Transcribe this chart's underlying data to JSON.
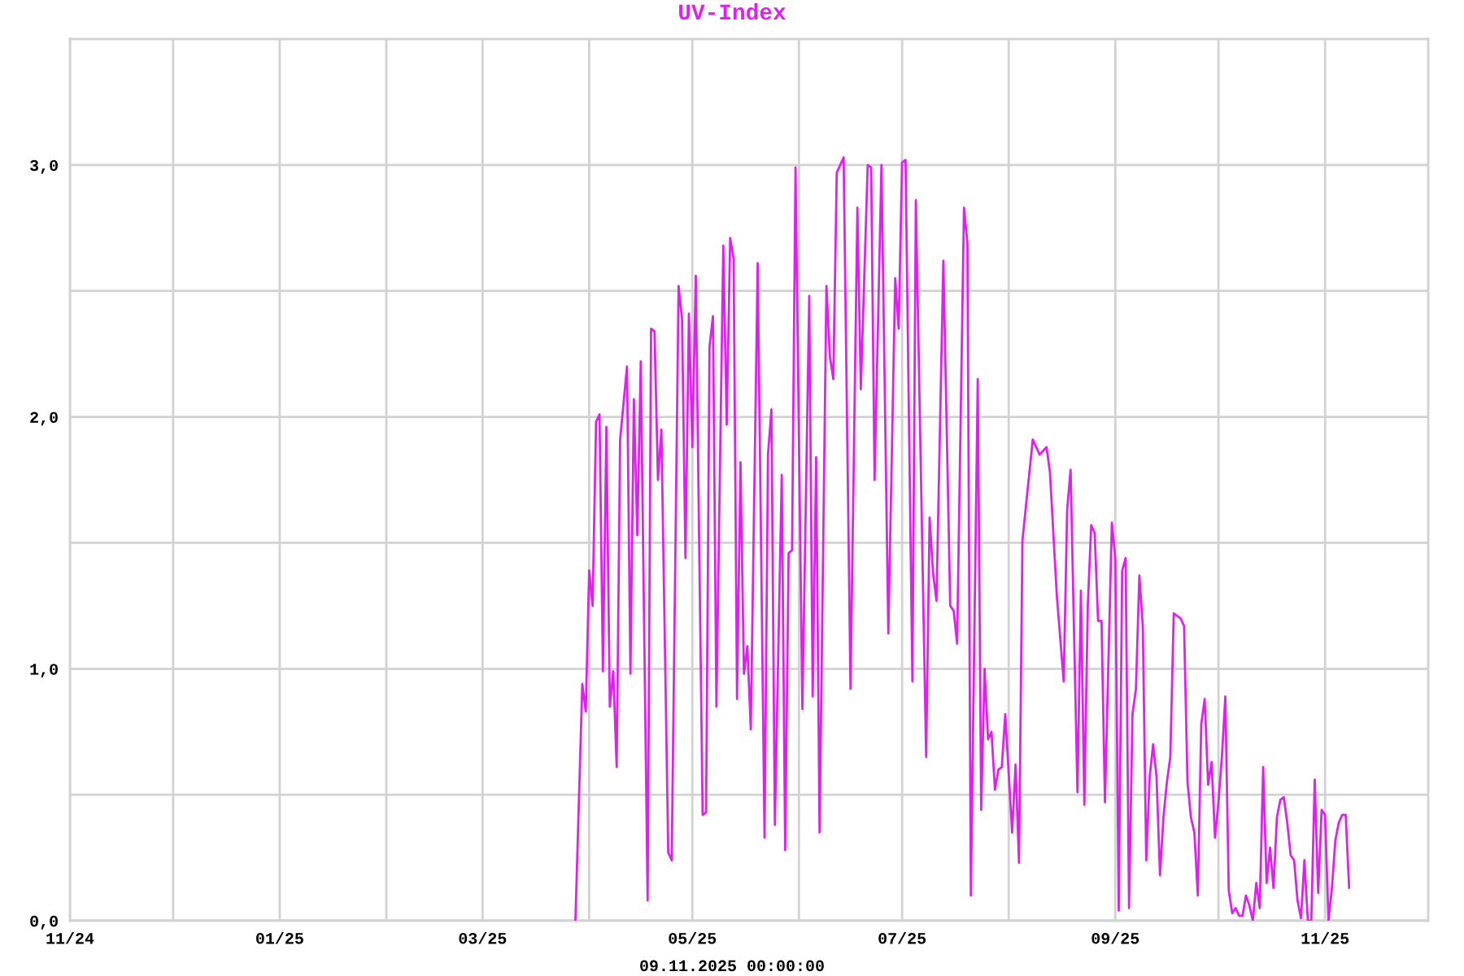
{
  "chart_data": {
    "type": "line",
    "title": "UV-Index",
    "annotations": [
      "09.11.2025 00:00:00"
    ],
    "xlim": [
      "2024-11-01",
      "2025-12-01"
    ],
    "xticks": [
      {
        "value": "2024-11-01",
        "label": "11/24"
      },
      {
        "value": "2024-12-01",
        "label": null
      },
      {
        "value": "2025-01-01",
        "label": "01/25"
      },
      {
        "value": "2025-02-01",
        "label": null
      },
      {
        "value": "2025-03-01",
        "label": "03/25"
      },
      {
        "value": "2025-04-01",
        "label": null
      },
      {
        "value": "2025-05-01",
        "label": "05/25"
      },
      {
        "value": "2025-06-01",
        "label": null
      },
      {
        "value": "2025-07-01",
        "label": "07/25"
      },
      {
        "value": "2025-08-01",
        "label": null
      },
      {
        "value": "2025-09-01",
        "label": "09/25"
      },
      {
        "value": "2025-10-01",
        "label": null
      },
      {
        "value": "2025-11-01",
        "label": "11/25"
      }
    ],
    "ylim": [
      0,
      3.5
    ],
    "yticks": [
      {
        "value": 0,
        "label": "0,0"
      },
      {
        "value": 0.5,
        "label": null
      },
      {
        "value": 1,
        "label": "1,0"
      },
      {
        "value": 1.5,
        "label": null
      },
      {
        "value": 2,
        "label": "2,0"
      },
      {
        "value": 2.5,
        "label": null
      },
      {
        "value": 3,
        "label": "3,0"
      }
    ],
    "grid": true,
    "series": [
      {
        "color": "#e020f0",
        "x": [
          "2025-03-28",
          "2025-03-30",
          "2025-03-31",
          "2025-04-01",
          "2025-04-02",
          "2025-04-03",
          "2025-04-04",
          "2025-04-05",
          "2025-04-06",
          "2025-04-07",
          "2025-04-08",
          "2025-04-09",
          "2025-04-10",
          "2025-04-12",
          "2025-04-13",
          "2025-04-14",
          "2025-04-15",
          "2025-04-16",
          "2025-04-18",
          "2025-04-19",
          "2025-04-20",
          "2025-04-21",
          "2025-04-22",
          "2025-04-24",
          "2025-04-25",
          "2025-04-27",
          "2025-04-28",
          "2025-04-29",
          "2025-04-30",
          "2025-05-01",
          "2025-05-02",
          "2025-05-04",
          "2025-05-05",
          "2025-05-06",
          "2025-05-07",
          "2025-05-08",
          "2025-05-10",
          "2025-05-11",
          "2025-05-12",
          "2025-05-13",
          "2025-05-14",
          "2025-05-15",
          "2025-05-16",
          "2025-05-17",
          "2025-05-18",
          "2025-05-20",
          "2025-05-22",
          "2025-05-23",
          "2025-05-24",
          "2025-05-25",
          "2025-05-27",
          "2025-05-28",
          "2025-05-29",
          "2025-05-30",
          "2025-05-31",
          "2025-06-02",
          "2025-06-04",
          "2025-06-05",
          "2025-06-06",
          "2025-06-07",
          "2025-06-09",
          "2025-06-10",
          "2025-06-11",
          "2025-06-12",
          "2025-06-14",
          "2025-06-16",
          "2025-06-18",
          "2025-06-19",
          "2025-06-21",
          "2025-06-22",
          "2025-06-23",
          "2025-06-25",
          "2025-06-27",
          "2025-06-29",
          "2025-06-30",
          "2025-07-01",
          "2025-07-02",
          "2025-07-04",
          "2025-07-05",
          "2025-07-08",
          "2025-07-09",
          "2025-07-10",
          "2025-07-11",
          "2025-07-13",
          "2025-07-15",
          "2025-07-16",
          "2025-07-17",
          "2025-07-19",
          "2025-07-20",
          "2025-07-21",
          "2025-07-23",
          "2025-07-24",
          "2025-07-25",
          "2025-07-26",
          "2025-07-27",
          "2025-07-28",
          "2025-07-29",
          "2025-07-30",
          "2025-07-31",
          "2025-08-02",
          "2025-08-03",
          "2025-08-04",
          "2025-08-05",
          "2025-08-08",
          "2025-08-10",
          "2025-08-12",
          "2025-08-13",
          "2025-08-15",
          "2025-08-17",
          "2025-08-18",
          "2025-08-19",
          "2025-08-21",
          "2025-08-22",
          "2025-08-23",
          "2025-08-24",
          "2025-08-25",
          "2025-08-26",
          "2025-08-27",
          "2025-08-28",
          "2025-08-29",
          "2025-08-31",
          "2025-09-01",
          "2025-09-02",
          "2025-09-03",
          "2025-09-04",
          "2025-09-05",
          "2025-09-06",
          "2025-09-07",
          "2025-09-08",
          "2025-09-09",
          "2025-09-10",
          "2025-09-11",
          "2025-09-12",
          "2025-09-13",
          "2025-09-14",
          "2025-09-15",
          "2025-09-16",
          "2025-09-17",
          "2025-09-18",
          "2025-09-19",
          "2025-09-20",
          "2025-09-21",
          "2025-09-22",
          "2025-09-23",
          "2025-09-24",
          "2025-09-25",
          "2025-09-26",
          "2025-09-27",
          "2025-09-28",
          "2025-09-29",
          "2025-09-30",
          "2025-10-01",
          "2025-10-02",
          "2025-10-03",
          "2025-10-04",
          "2025-10-05",
          "2025-10-06",
          "2025-10-07",
          "2025-10-08",
          "2025-10-09",
          "2025-10-10",
          "2025-10-11",
          "2025-10-12",
          "2025-10-13",
          "2025-10-14",
          "2025-10-15",
          "2025-10-16",
          "2025-10-17",
          "2025-10-18",
          "2025-10-19",
          "2025-10-20",
          "2025-10-21",
          "2025-10-22",
          "2025-10-23",
          "2025-10-24",
          "2025-10-25",
          "2025-10-26",
          "2025-10-27",
          "2025-10-28",
          "2025-10-29",
          "2025-10-30",
          "2025-10-31",
          "2025-11-01",
          "2025-11-02",
          "2025-11-03",
          "2025-11-04",
          "2025-11-05",
          "2025-11-06",
          "2025-11-07",
          "2025-11-08"
        ],
        "values": [
          0.0,
          0.94,
          0.83,
          1.39,
          1.25,
          1.98,
          2.01,
          0.99,
          1.96,
          0.85,
          0.99,
          0.61,
          1.91,
          2.2,
          0.98,
          2.07,
          1.53,
          2.22,
          0.08,
          2.35,
          2.34,
          1.75,
          1.95,
          0.27,
          0.24,
          2.52,
          2.39,
          1.44,
          2.41,
          1.88,
          2.56,
          0.42,
          0.43,
          2.28,
          2.4,
          0.85,
          2.68,
          1.97,
          2.71,
          2.63,
          0.88,
          1.82,
          0.98,
          1.09,
          0.76,
          2.61,
          0.33,
          1.85,
          2.03,
          0.38,
          1.77,
          0.28,
          1.46,
          1.47,
          2.99,
          0.84,
          2.48,
          0.89,
          1.84,
          0.35,
          2.52,
          2.24,
          2.15,
          2.97,
          3.03,
          0.92,
          2.83,
          2.11,
          3.0,
          2.99,
          1.75,
          3.0,
          1.14,
          2.55,
          2.35,
          3.01,
          3.02,
          0.95,
          2.86,
          0.65,
          1.6,
          1.38,
          1.27,
          2.62,
          1.25,
          1.23,
          1.1,
          2.83,
          2.69,
          0.1,
          2.15,
          0.44,
          1.0,
          0.72,
          0.75,
          0.52,
          0.6,
          0.61,
          0.82,
          0.35,
          0.62,
          0.23,
          1.51,
          1.91,
          1.85,
          1.88,
          1.78,
          1.29,
          0.95,
          1.63,
          1.79,
          0.51,
          1.31,
          0.46,
          1.25,
          1.57,
          1.54,
          1.19,
          1.19,
          0.47,
          1.58,
          1.44,
          0.04,
          1.39,
          1.44,
          0.05,
          0.82,
          0.92,
          1.37,
          1.17,
          0.24,
          0.57,
          0.7,
          0.57,
          0.18,
          0.41,
          0.55,
          0.65,
          1.22,
          1.21,
          1.2,
          1.17,
          0.55,
          0.41,
          0.35,
          0.1,
          0.78,
          0.88,
          0.54,
          0.63,
          0.33,
          0.47,
          0.65,
          0.89,
          0.12,
          0.03,
          0.05,
          0.02,
          0.02,
          0.1,
          0.06,
          0.0,
          0.15,
          0.05,
          0.61,
          0.15,
          0.29,
          0.13,
          0.41,
          0.48,
          0.49,
          0.39,
          0.26,
          0.24,
          0.08,
          0.01,
          0.24,
          0.0,
          0.0,
          0.56,
          0.11,
          0.44,
          0.42,
          0.0,
          0.13,
          0.32,
          0.39,
          0.42,
          0.42,
          0.13
        ]
      }
    ]
  }
}
